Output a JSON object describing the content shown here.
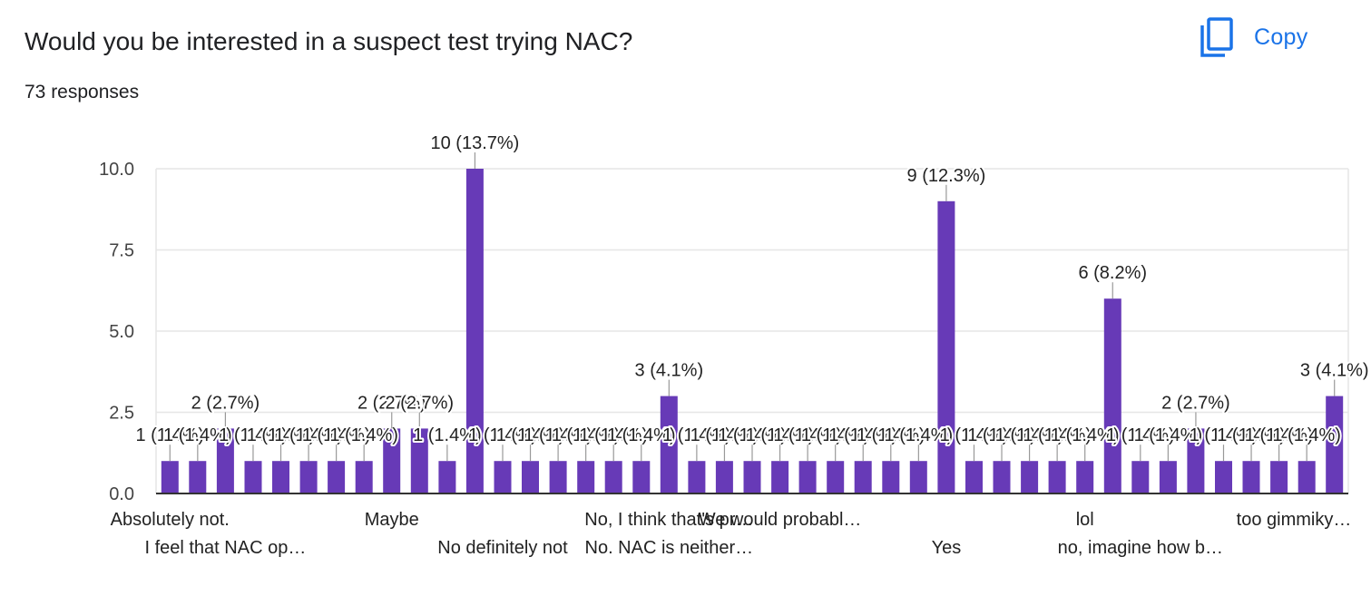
{
  "header": {
    "title": "Would you be interested in a suspect test trying NAC?",
    "responses": "73 responses",
    "copy_label": "Copy"
  },
  "icons": {
    "copy": "copy-icon"
  },
  "colors": {
    "bar": "#673ab7",
    "accent": "#1a73e8",
    "grid": "#e6e6e6",
    "axis": "#333333"
  },
  "chart_data": {
    "type": "bar",
    "title": "",
    "xlabel": "",
    "ylabel": "",
    "ylim": [
      0,
      10
    ],
    "yticks": [
      "0.0",
      "2.5",
      "5.0",
      "7.5",
      "10.0"
    ],
    "grid": true,
    "legend": "none",
    "values": [
      1,
      1,
      2,
      1,
      1,
      1,
      1,
      1,
      2,
      2,
      1,
      10,
      1,
      1,
      1,
      1,
      1,
      1,
      3,
      1,
      1,
      1,
      1,
      1,
      1,
      1,
      1,
      1,
      9,
      1,
      1,
      1,
      1,
      1,
      6,
      1,
      1,
      2,
      1,
      1,
      1,
      1,
      3
    ],
    "data_labels": [
      "1 (1.4%)",
      "1 (1.4%)",
      "2 (2.7%)",
      "1 (1.4%)",
      "1 (1.4%)",
      "1 (1.4%)",
      "1 (1.4%)",
      "1 (1.4%)",
      "2 (2.7%)",
      "2 (2.7%)",
      "1 (1.4%)",
      "10 (13.7%)",
      "1 (1.4%)",
      "1 (1.4%)",
      "1 (1.4%)",
      "1 (1.4%)",
      "1 (1.4%)",
      "1 (1.4%)",
      "3 (4.1%)",
      "1 (1.4%)",
      "1 (1.4%)",
      "1 (1.4%)",
      "1 (1.4%)",
      "1 (1.4%)",
      "1 (1.4%)",
      "1 (1.4%)",
      "1 (1.4%)",
      "1 (1.4%)",
      "9 (12.3%)",
      "1 (1.4%)",
      "1 (1.4%)",
      "1 (1.4%)",
      "1 (1.4%)",
      "1 (1.4%)",
      "6 (8.2%)",
      "1 (1.4%)",
      "1 (1.4%)",
      "2 (2.7%)",
      "1 (1.4%)",
      "1 (1.4%)",
      "1 (1.4%)",
      "1 (1.4%)",
      "3 (4.1%)"
    ],
    "category_labels": [
      {
        "index": 0,
        "text": "Absolutely not.",
        "row": 1
      },
      {
        "index": 2,
        "text": "I feel that NAC op…",
        "row": 2
      },
      {
        "index": 8,
        "text": "Maybe",
        "row": 1
      },
      {
        "index": 12,
        "text": "No definitely not",
        "row": 2
      },
      {
        "index": 18,
        "text": "No, I think that's pr…",
        "row": 1
      },
      {
        "index": 18,
        "text": "No. NAC is neither…",
        "row": 2
      },
      {
        "index": 22,
        "text": "We would probabl…",
        "row": 1
      },
      {
        "index": 28,
        "text": "Yes",
        "row": 2
      },
      {
        "index": 33,
        "text": "lol",
        "row": 1
      },
      {
        "index": 35,
        "text": "no, imagine how b…",
        "row": 2
      },
      {
        "index": 42,
        "text": "too gimmiky…",
        "row": 1
      }
    ]
  }
}
